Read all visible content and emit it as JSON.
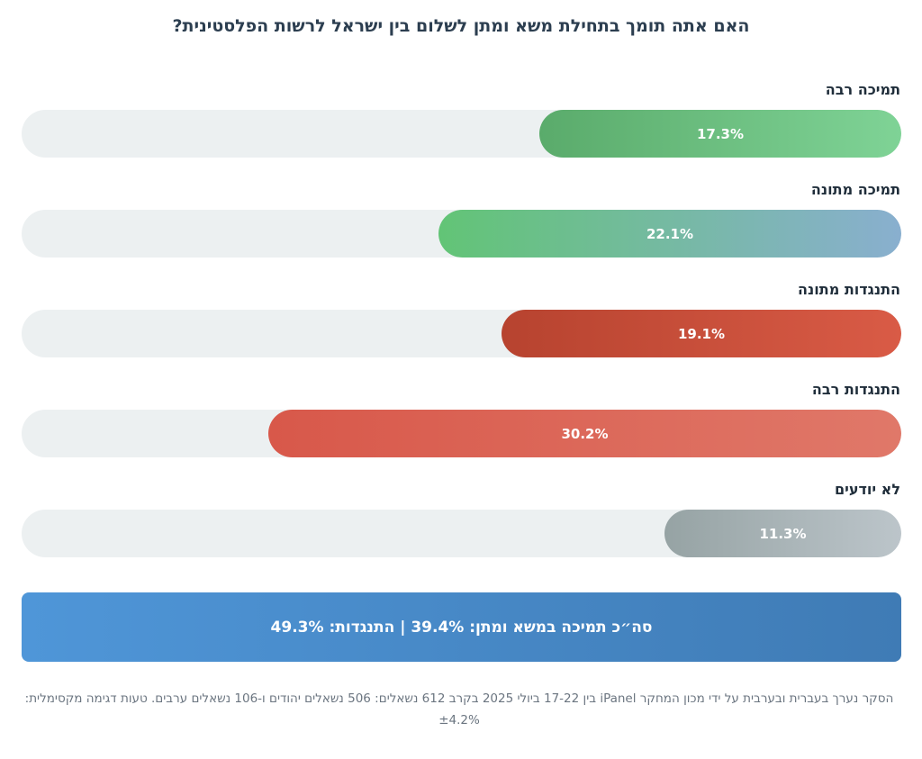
{
  "chart_data": {
    "type": "bar",
    "title": "האם אתה תומך בתחילת משא ומתן לשלום בין ישראל לרשות הפלסטינית?",
    "categories": [
      "תמיכה רבה",
      "תמיכה מתונה",
      "התנגדות מתונה",
      "התנגדות רבה",
      "לא יודעים"
    ],
    "values": [
      17.3,
      22.1,
      19.1,
      30.2,
      11.3
    ],
    "value_labels": [
      "17.3%",
      "22.1%",
      "19.1%",
      "30.2%",
      "11.3%"
    ],
    "unit": "%",
    "bar_colors": [
      [
        "#5aab6b",
        "#7fd396"
      ],
      [
        "#62c476",
        "#89afcf"
      ],
      [
        "#b7432f",
        "#d95b46"
      ],
      [
        "#d8584a",
        "#e07869"
      ],
      [
        "#96a3a4",
        "#bcc5ca"
      ]
    ],
    "track_color": "#ecf0f1",
    "scale_max": 42
  },
  "summary": {
    "text": "סה״כ תמיכה במשא ומתן: 39.4% | התנגדות: 49.3%"
  },
  "footnote": {
    "text": "הסקר נערך בעברית ובערבית על ידי מכון המחקר iPanel בין 17-22 ביולי 2025 בקרב 612 נשאלים: 506 נשאלים יהודים ו-106 נשאלים ערבים. טעות דגימה מקסימלית: ±4.2%"
  }
}
